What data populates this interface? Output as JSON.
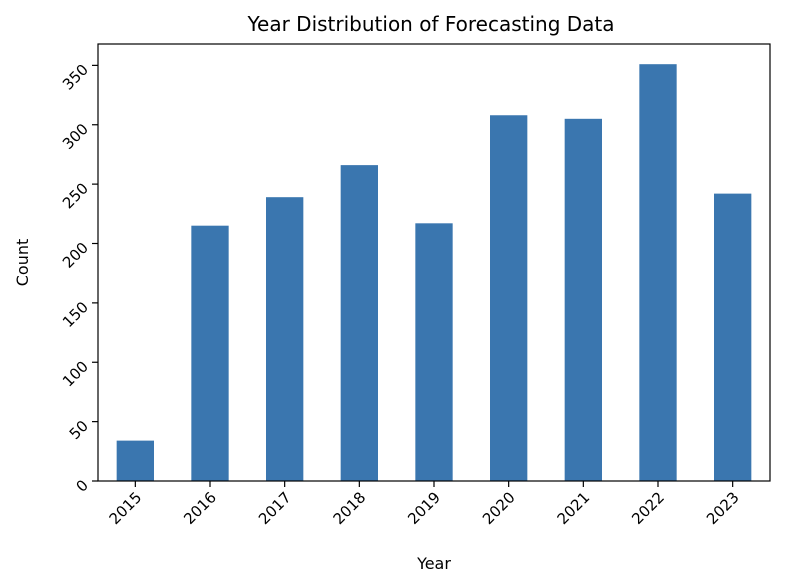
{
  "chart_data": {
    "type": "bar",
    "title": "Year Distribution of Forecasting Data",
    "xlabel": "Year",
    "ylabel": "Count",
    "categories": [
      "2015",
      "2016",
      "2017",
      "2018",
      "2019",
      "2020",
      "2021",
      "2022",
      "2023"
    ],
    "values": [
      34,
      215,
      239,
      266,
      217,
      308,
      305,
      351,
      242
    ],
    "ylim": [
      0,
      368
    ],
    "yticks": [
      0,
      50,
      100,
      150,
      200,
      250,
      300,
      350
    ],
    "tick_rotation_deg": 45,
    "grid": false,
    "legend": false,
    "bar_color": "#3a76af"
  }
}
